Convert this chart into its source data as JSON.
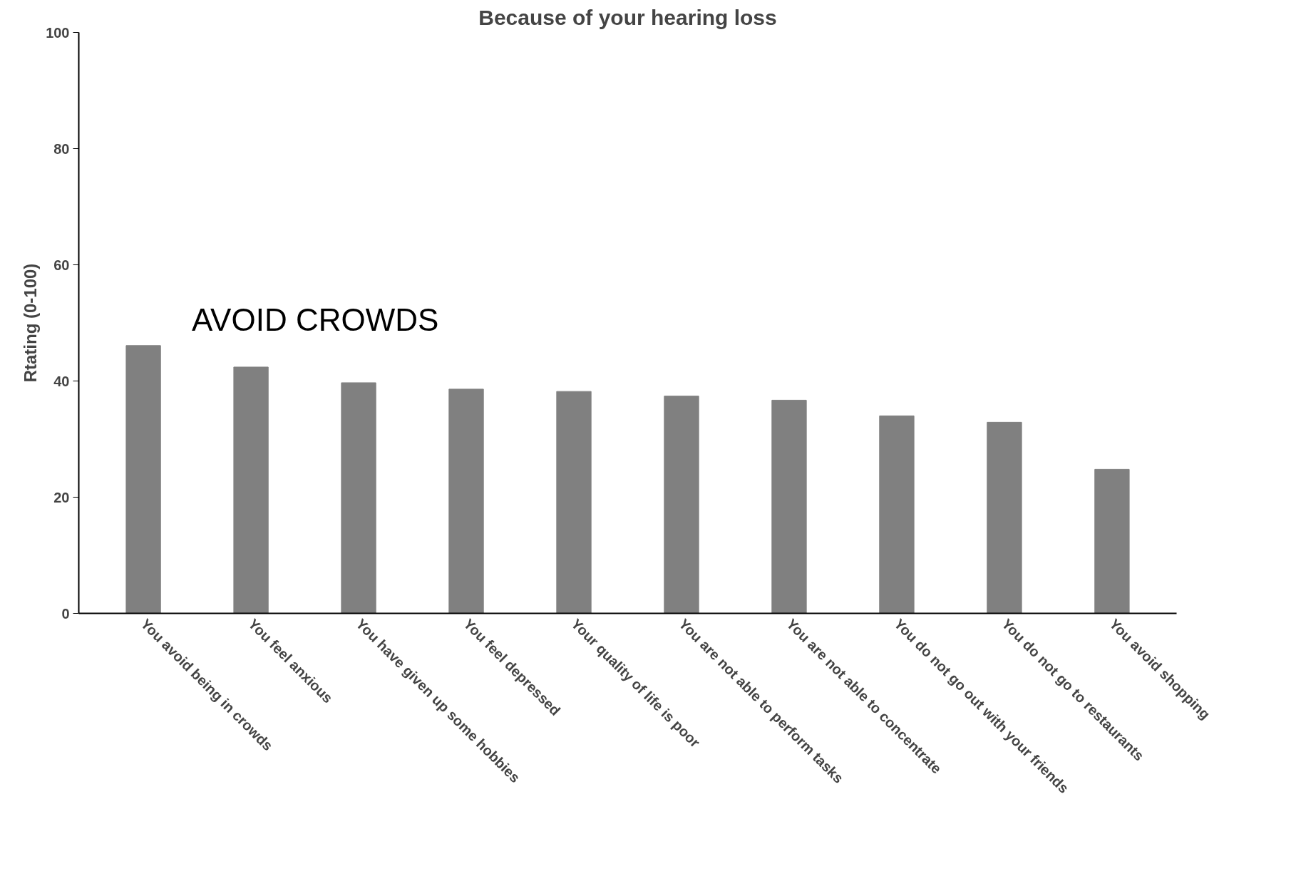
{
  "chart_data": {
    "type": "bar",
    "title": "Because of your hearing loss",
    "ylabel": "Rtating (0-100)",
    "categories": [
      "You avoid being in crowds",
      "You feel anxious",
      "You have given up some hobbies",
      "You feel depressed",
      "Your quality of life is poor",
      "You are not able to perform tasks",
      "You are not able to concentrate",
      "You do not go out with your friends",
      "You do not go to restaurants",
      "You avoid shopping"
    ],
    "values": [
      46.1,
      42.4,
      39.7,
      38.6,
      38.2,
      37.4,
      36.7,
      34.0,
      32.9,
      24.8
    ],
    "color": "#808080",
    "ylim": [
      0,
      100
    ],
    "yticks": [
      0,
      20,
      40,
      60,
      80,
      100
    ],
    "grid": false,
    "annotations": [
      "AVOID CROWDS"
    ]
  }
}
